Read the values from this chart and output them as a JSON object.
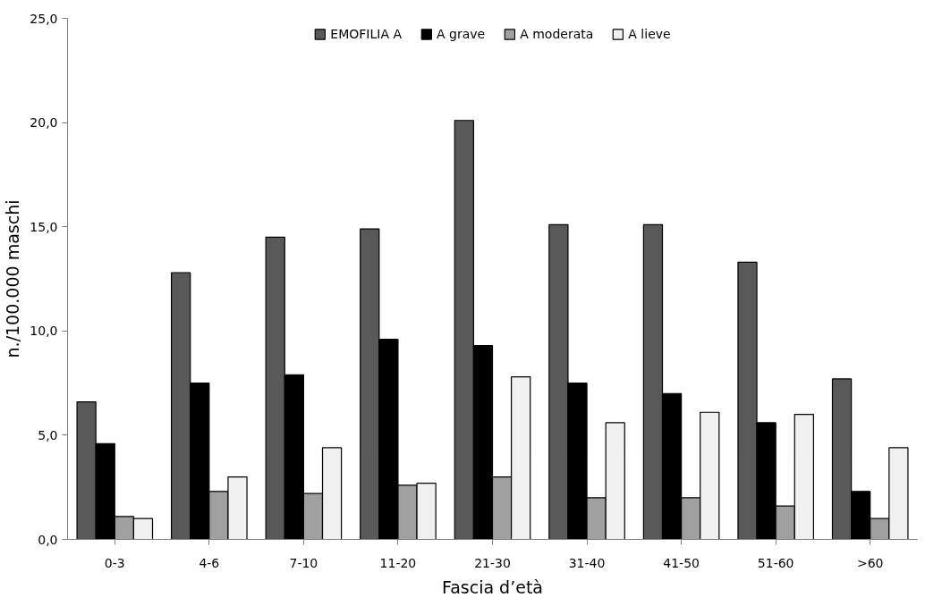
{
  "chart_data": {
    "type": "bar",
    "xlabel": "Fascia d’età",
    "ylabel": "n./100.000 maschi",
    "categories": [
      "0-3",
      "4-6",
      "7-10",
      "11-20",
      "21-30",
      "31-40",
      "41-50",
      "51-60",
      ">60"
    ],
    "series": [
      {
        "name": "EMOFILIA A",
        "color": "#595959",
        "values": [
          6.6,
          12.8,
          14.5,
          14.9,
          20.1,
          15.1,
          15.1,
          13.3,
          7.7
        ]
      },
      {
        "name": "A grave",
        "color": "#000000",
        "values": [
          4.6,
          7.5,
          7.9,
          9.6,
          9.3,
          7.5,
          7.0,
          5.6,
          2.3
        ]
      },
      {
        "name": "A moderata",
        "color": "#a0a0a0",
        "values": [
          1.1,
          2.3,
          2.2,
          2.6,
          3.0,
          2.0,
          2.0,
          1.6,
          1.0
        ]
      },
      {
        "name": "A lieve",
        "color": "#f0f0f0",
        "values": [
          1.0,
          3.0,
          4.4,
          2.7,
          7.8,
          5.6,
          6.1,
          6.0,
          4.4
        ]
      }
    ],
    "ylim": [
      0,
      25
    ],
    "yticks": [
      {
        "value": 0,
        "label": "0,0"
      },
      {
        "value": 5,
        "label": "5,0"
      },
      {
        "value": 10,
        "label": "10,0"
      },
      {
        "value": 15,
        "label": "15,0"
      },
      {
        "value": 20,
        "label": "20,0"
      },
      {
        "value": 25,
        "label": "25,0"
      }
    ],
    "grid": false,
    "legend": "top"
  }
}
